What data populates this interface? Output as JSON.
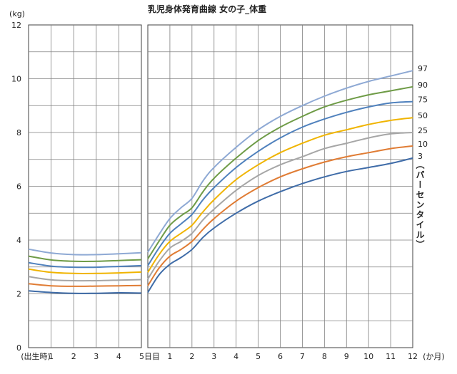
{
  "chart_data": {
    "type": "line",
    "title": "乳児身体発育曲線 女の子_体重",
    "y_unit": "(kg)",
    "ylim": [
      0,
      12
    ],
    "y_ticks": [
      "0",
      "2",
      "4",
      "6",
      "8",
      "10",
      "12"
    ],
    "grid": true,
    "right_label": "（パーセンタイル）",
    "panels": [
      {
        "id": "newborn",
        "x_unit": "days",
        "xlim": [
          0,
          5
        ],
        "x_ticks": [
          {
            "v": 0,
            "label": "(出生時)"
          },
          {
            "v": 1,
            "label": "1"
          },
          {
            "v": 2,
            "label": "2"
          },
          {
            "v": 3,
            "label": "3"
          },
          {
            "v": 4,
            "label": "4"
          },
          {
            "v": 5,
            "label": "5日目"
          }
        ],
        "x": [
          0,
          1,
          2,
          3,
          4,
          5
        ],
        "series": [
          {
            "name": "97",
            "color": "#8EA9D4",
            "values": [
              3.66,
              3.52,
              3.46,
              3.46,
              3.49,
              3.53
            ]
          },
          {
            "name": "90",
            "color": "#6E9B46",
            "values": [
              3.4,
              3.26,
              3.21,
              3.21,
              3.24,
              3.27
            ]
          },
          {
            "name": "75",
            "color": "#4F81BD",
            "values": [
              3.16,
              3.03,
              2.99,
              2.99,
              3.02,
              3.05
            ]
          },
          {
            "name": "50",
            "color": "#F0B400",
            "values": [
              2.92,
              2.8,
              2.76,
              2.76,
              2.78,
              2.81
            ]
          },
          {
            "name": "25",
            "color": "#A6A6A6",
            "values": [
              2.64,
              2.52,
              2.49,
              2.49,
              2.51,
              2.53
            ]
          },
          {
            "name": "10",
            "color": "#E07C34",
            "values": [
              2.38,
              2.3,
              2.28,
              2.29,
              2.3,
              2.31
            ]
          },
          {
            "name": "3",
            "color": "#3F6CA8",
            "values": [
              2.11,
              2.05,
              2.02,
              2.02,
              2.04,
              2.03
            ]
          }
        ]
      },
      {
        "id": "months",
        "x_unit": "months",
        "xlim": [
          0,
          12
        ],
        "x_ticks": [
          {
            "v": 1,
            "label": "1"
          },
          {
            "v": 2,
            "label": "2"
          },
          {
            "v": 3,
            "label": "3"
          },
          {
            "v": 4,
            "label": "4"
          },
          {
            "v": 5,
            "label": "5"
          },
          {
            "v": 6,
            "label": "6"
          },
          {
            "v": 7,
            "label": "7"
          },
          {
            "v": 8,
            "label": "8"
          },
          {
            "v": 9,
            "label": "9"
          },
          {
            "v": 10,
            "label": "10"
          },
          {
            "v": 11,
            "label": "11"
          },
          {
            "v": 12,
            "label": "12"
          },
          {
            "v": 12.95,
            "label": "(か月)"
          }
        ],
        "x": [
          0,
          0.5,
          1,
          1.5,
          2,
          2.5,
          3,
          4,
          5,
          6,
          7,
          8,
          9,
          10,
          11,
          12
        ],
        "series": [
          {
            "name": "97",
            "color": "#8EA9D4",
            "values": [
              3.55,
              4.2,
              4.8,
              5.2,
              5.55,
              6.2,
              6.7,
              7.45,
              8.1,
              8.6,
              9.0,
              9.35,
              9.65,
              9.9,
              10.1,
              10.3
            ]
          },
          {
            "name": "90",
            "color": "#6E9B46",
            "values": [
              3.3,
              3.95,
              4.55,
              4.9,
              5.2,
              5.8,
              6.3,
              7.05,
              7.7,
              8.2,
              8.6,
              8.95,
              9.2,
              9.4,
              9.55,
              9.7
            ]
          },
          {
            "name": "75",
            "color": "#4F81BD",
            "values": [
              3.05,
              3.7,
              4.25,
              4.6,
              4.95,
              5.5,
              5.95,
              6.7,
              7.3,
              7.8,
              8.2,
              8.5,
              8.75,
              8.95,
              9.1,
              9.15
            ]
          },
          {
            "name": "50",
            "color": "#F0B400",
            "values": [
              2.8,
              3.45,
              3.95,
              4.25,
              4.55,
              5.05,
              5.5,
              6.25,
              6.8,
              7.25,
              7.6,
              7.9,
              8.1,
              8.3,
              8.45,
              8.55
            ]
          },
          {
            "name": "25",
            "color": "#A6A6A6",
            "values": [
              2.55,
              3.2,
              3.7,
              3.95,
              4.25,
              4.75,
              5.15,
              5.85,
              6.4,
              6.8,
              7.1,
              7.4,
              7.6,
              7.8,
              7.95,
              8.0
            ]
          },
          {
            "name": "10",
            "color": "#E07C34",
            "values": [
              2.3,
              2.95,
              3.4,
              3.65,
              3.95,
              4.4,
              4.8,
              5.45,
              5.95,
              6.35,
              6.65,
              6.9,
              7.1,
              7.25,
              7.4,
              7.5
            ]
          },
          {
            "name": "3",
            "color": "#3F6CA8",
            "values": [
              2.05,
              2.7,
              3.1,
              3.35,
              3.65,
              4.1,
              4.45,
              5.0,
              5.45,
              5.8,
              6.1,
              6.35,
              6.55,
              6.7,
              6.85,
              7.05
            ]
          }
        ]
      }
    ]
  }
}
